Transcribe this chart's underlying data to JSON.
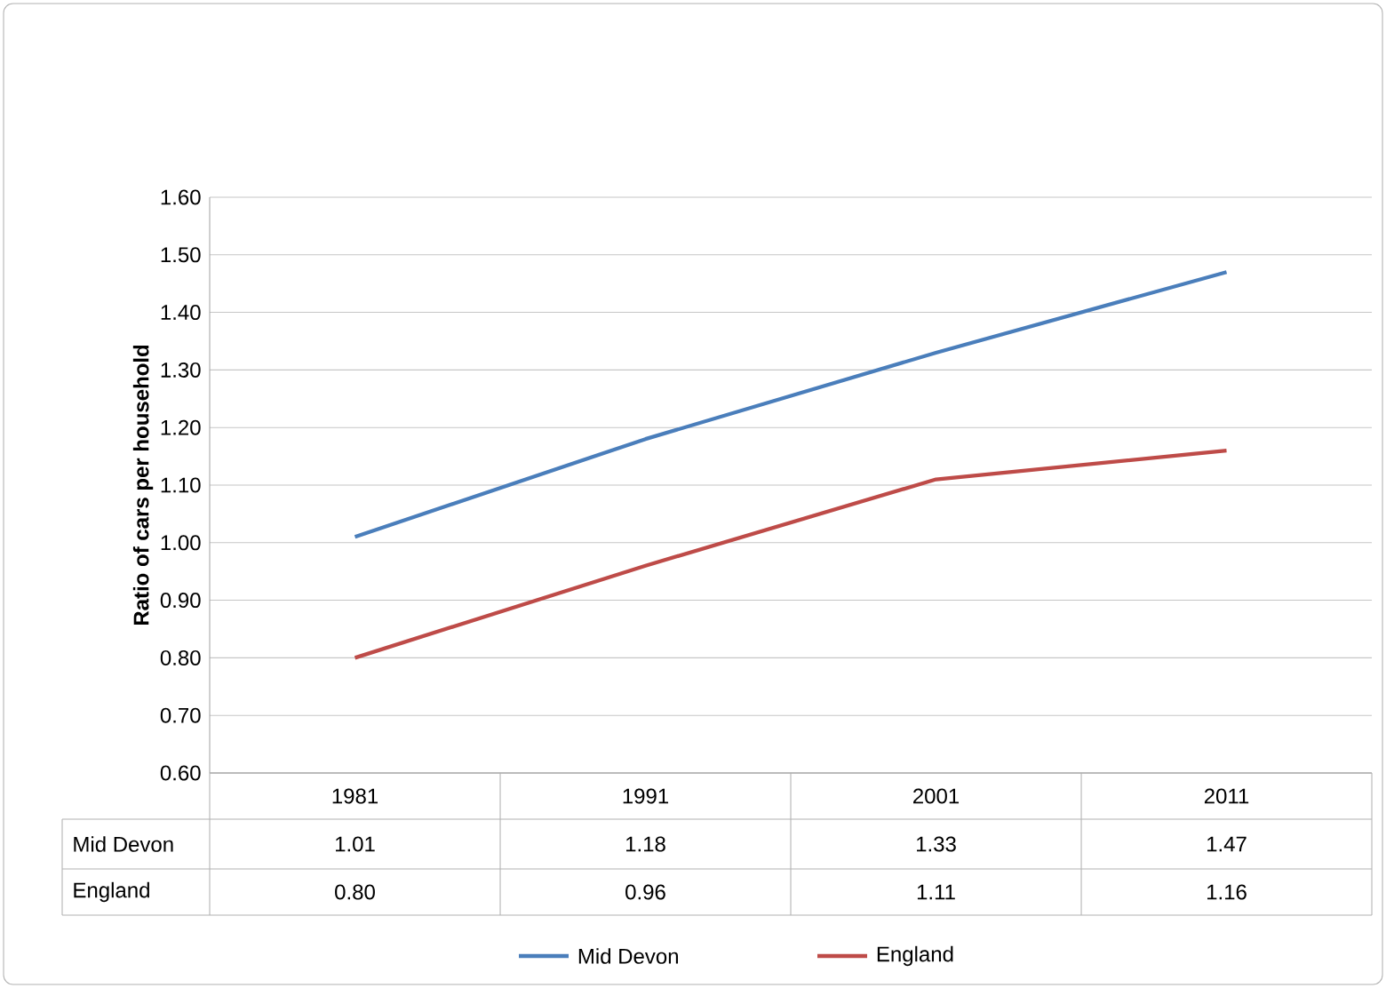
{
  "chart_data": {
    "type": "line",
    "ylabel": "Ratio of cars per household",
    "categories": [
      "1981",
      "1991",
      "2001",
      "2011"
    ],
    "series": [
      {
        "name": "Mid Devon",
        "color": "#4a7ebb",
        "values": [
          1.01,
          1.18,
          1.33,
          1.47
        ],
        "value_labels": [
          "1.01",
          "1.18",
          "1.33",
          "1.47"
        ]
      },
      {
        "name": "England",
        "color": "#be4b48",
        "values": [
          0.8,
          0.96,
          1.11,
          1.16
        ],
        "value_labels": [
          "0.80",
          "0.96",
          "1.11",
          "1.16"
        ]
      }
    ],
    "ylim": [
      0.6,
      1.6
    ],
    "yticks": [
      {
        "value": 0.6,
        "label": "0.60"
      },
      {
        "value": 0.7,
        "label": "0.70"
      },
      {
        "value": 0.8,
        "label": "0.80"
      },
      {
        "value": 0.9,
        "label": "0.90"
      },
      {
        "value": 1.0,
        "label": "1.00"
      },
      {
        "value": 1.1,
        "label": "1.10"
      },
      {
        "value": 1.2,
        "label": "1.20"
      },
      {
        "value": 1.3,
        "label": "1.30"
      },
      {
        "value": 1.4,
        "label": "1.40"
      },
      {
        "value": 1.5,
        "label": "1.50"
      },
      {
        "value": 1.6,
        "label": "1.60"
      }
    ],
    "grid": "y",
    "legend": "bottom",
    "marker": "none",
    "line_style": "solid"
  }
}
